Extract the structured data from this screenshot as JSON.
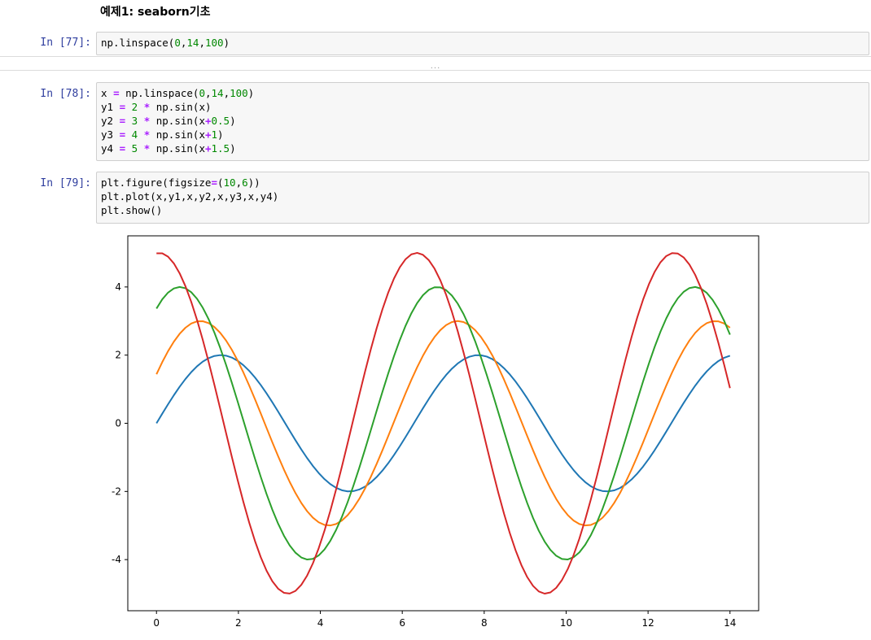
{
  "notebook": {
    "heading": "예제1: seaborn기초",
    "divider_text": "···",
    "cells": [
      {
        "prompt": "In [77]:",
        "code": "np.linspace(0,14,100)"
      },
      {
        "prompt": "In [78]:",
        "code": "x = np.linspace(0,14,100)\ny1 = 2 * np.sin(x)\ny2 = 3 * np.sin(x+0.5)\ny3 = 4 * np.sin(x+1)\ny4 = 5 * np.sin(x+1.5)"
      },
      {
        "prompt": "In [79]:",
        "code": "plt.figure(figsize=(10,6))\nplt.plot(x,y1,x,y2,x,y3,x,y4)\nplt.show()"
      }
    ]
  },
  "chart_data": {
    "type": "line",
    "title": "",
    "xlabel": "",
    "ylabel": "",
    "xlim": [
      -0.7,
      14.7
    ],
    "ylim": [
      -5.5,
      5.5
    ],
    "xticks": [
      0,
      2,
      4,
      6,
      8,
      10,
      12,
      14
    ],
    "yticks": [
      -4,
      -2,
      0,
      2,
      4
    ],
    "xtick_labels": [
      "0",
      "2",
      "4",
      "6",
      "8",
      "10",
      "12",
      "14"
    ],
    "ytick_labels": [
      "-4",
      "-2",
      "0",
      "2",
      "4"
    ],
    "grid": false,
    "legend": "none",
    "x": {
      "start": 0,
      "stop": 14,
      "num": 100
    },
    "series": [
      {
        "color": "#1f77b4",
        "amplitude": 2,
        "phase": 0
      },
      {
        "color": "#ff7f0e",
        "amplitude": 3,
        "phase": 0.5
      },
      {
        "color": "#2ca02c",
        "amplitude": 4,
        "phase": 1
      },
      {
        "color": "#d62728",
        "amplitude": 5,
        "phase": 1.5
      }
    ]
  }
}
